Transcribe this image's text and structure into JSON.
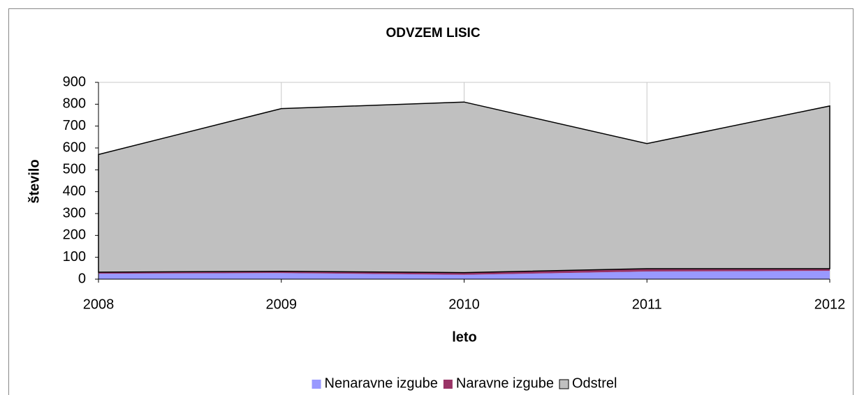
{
  "chart_data": {
    "type": "stacked_area",
    "title": "ODVZEM LISIC",
    "x_label": "leto",
    "y_label": "število",
    "categories": [
      "2008",
      "2009",
      "2010",
      "2011",
      "2012"
    ],
    "series": [
      {
        "name": "Nenaravne izgube",
        "color": "#9999ff",
        "values": [
          25,
          28,
          20,
          35,
          38
        ]
      },
      {
        "name": "Naravne izgube",
        "color": "#993366",
        "values": [
          7,
          8,
          10,
          13,
          10
        ]
      },
      {
        "name": "Odstrel",
        "color": "#c0c0c0",
        "values": [
          538,
          744,
          780,
          572,
          744
        ]
      }
    ],
    "ylim": [
      0,
      900
    ],
    "yticks": [
      0,
      100,
      200,
      300,
      400,
      500,
      600,
      700,
      800,
      900
    ],
    "grid": "vertical",
    "legend": "bottom"
  }
}
